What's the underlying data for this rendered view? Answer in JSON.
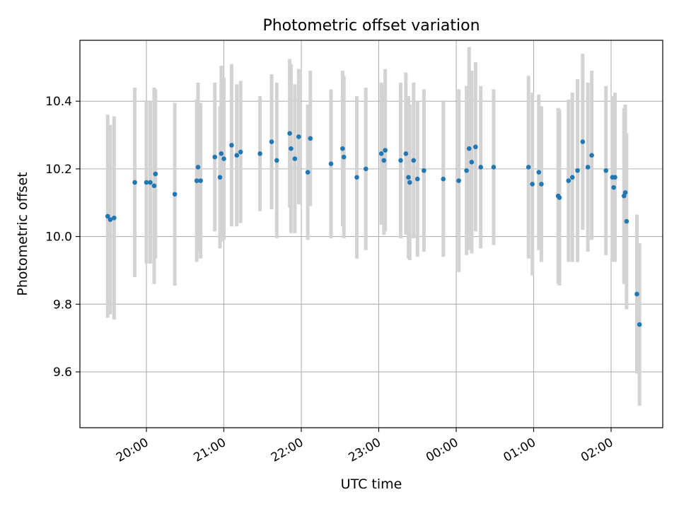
{
  "chart_data": {
    "type": "scatter",
    "title": "Photometric offset variation",
    "xlabel": "UTC time",
    "ylabel": "Photometric offset",
    "x_ticks": [
      "20:00",
      "21:00",
      "22:00",
      "23:00",
      "00:00",
      "01:00",
      "02:00"
    ],
    "y_ticks": [
      "9.6",
      "9.8",
      "10.0",
      "10.2",
      "10.4"
    ],
    "grid": true,
    "colors": {
      "marker": "#1f77b4",
      "errorbar": "#d3d3d3",
      "grid": "#b0b0b0"
    },
    "series": [
      {
        "x": [
          "19:30",
          "19:32",
          "19:35",
          "19:51",
          "20:00",
          "20:03",
          "20:06",
          "20:07",
          "20:22",
          "20:39",
          "20:40",
          "20:42",
          "20:53",
          "20:57",
          "20:58",
          "21:00",
          "21:06",
          "21:10",
          "21:13",
          "21:28",
          "21:37",
          "21:41",
          "21:51",
          "21:52",
          "21:55",
          "21:58",
          "22:05",
          "22:07",
          "22:23",
          "22:32",
          "22:33",
          "22:43",
          "22:50",
          "23:02",
          "23:04",
          "23:05",
          "23:17",
          "23:21",
          "23:23",
          "23:24",
          "23:27",
          "23:30",
          "23:35",
          "23:50",
          "24:02",
          "24:08",
          "24:10",
          "24:12",
          "24:15",
          "24:19",
          "24:29",
          "24:56",
          "24:59",
          "25:04",
          "25:06",
          "25:19",
          "25:20",
          "25:27",
          "25:30",
          "25:34",
          "25:38",
          "25:42",
          "25:45",
          "25:56",
          "26:01",
          "26:02",
          "26:03",
          "26:10",
          "26:11",
          "26:12",
          "26:20",
          "26:22"
        ],
        "y": [
          10.06,
          10.05,
          10.055,
          10.16,
          10.16,
          10.16,
          10.15,
          10.185,
          10.125,
          10.165,
          10.205,
          10.165,
          10.235,
          10.175,
          10.245,
          10.23,
          10.27,
          10.24,
          10.25,
          10.245,
          10.28,
          10.225,
          10.305,
          10.26,
          10.23,
          10.295,
          10.19,
          10.29,
          10.215,
          10.26,
          10.235,
          10.175,
          10.2,
          10.245,
          10.225,
          10.255,
          10.225,
          10.245,
          10.175,
          10.16,
          10.225,
          10.17,
          10.195,
          10.17,
          10.165,
          10.195,
          10.26,
          10.22,
          10.265,
          10.205,
          10.205,
          10.205,
          10.155,
          10.19,
          10.155,
          10.12,
          10.115,
          10.165,
          10.175,
          10.195,
          10.28,
          10.205,
          10.24,
          10.195,
          10.175,
          10.145,
          10.175,
          10.12,
          10.13,
          10.045,
          9.83,
          9.74
        ],
        "yerr": [
          0.3,
          0.28,
          0.3,
          0.28,
          0.24,
          0.24,
          0.29,
          0.25,
          0.27,
          0.24,
          0.25,
          0.23,
          0.22,
          0.21,
          0.26,
          0.24,
          0.24,
          0.21,
          0.21,
          0.17,
          0.2,
          0.23,
          0.22,
          0.25,
          0.22,
          0.2,
          0.2,
          0.2,
          0.22,
          0.23,
          0.24,
          0.24,
          0.24,
          0.21,
          0.22,
          0.24,
          0.23,
          0.24,
          0.24,
          0.23,
          0.23,
          0.23,
          0.24,
          0.23,
          0.27,
          0.25,
          0.3,
          0.27,
          0.25,
          0.24,
          0.23,
          0.27,
          0.27,
          0.23,
          0.23,
          0.26,
          0.26,
          0.24,
          0.25,
          0.27,
          0.26,
          0.25,
          0.25,
          0.25,
          0.24,
          0.22,
          0.25,
          0.26,
          0.26,
          0.26,
          0.235,
          0.24
        ]
      }
    ]
  }
}
